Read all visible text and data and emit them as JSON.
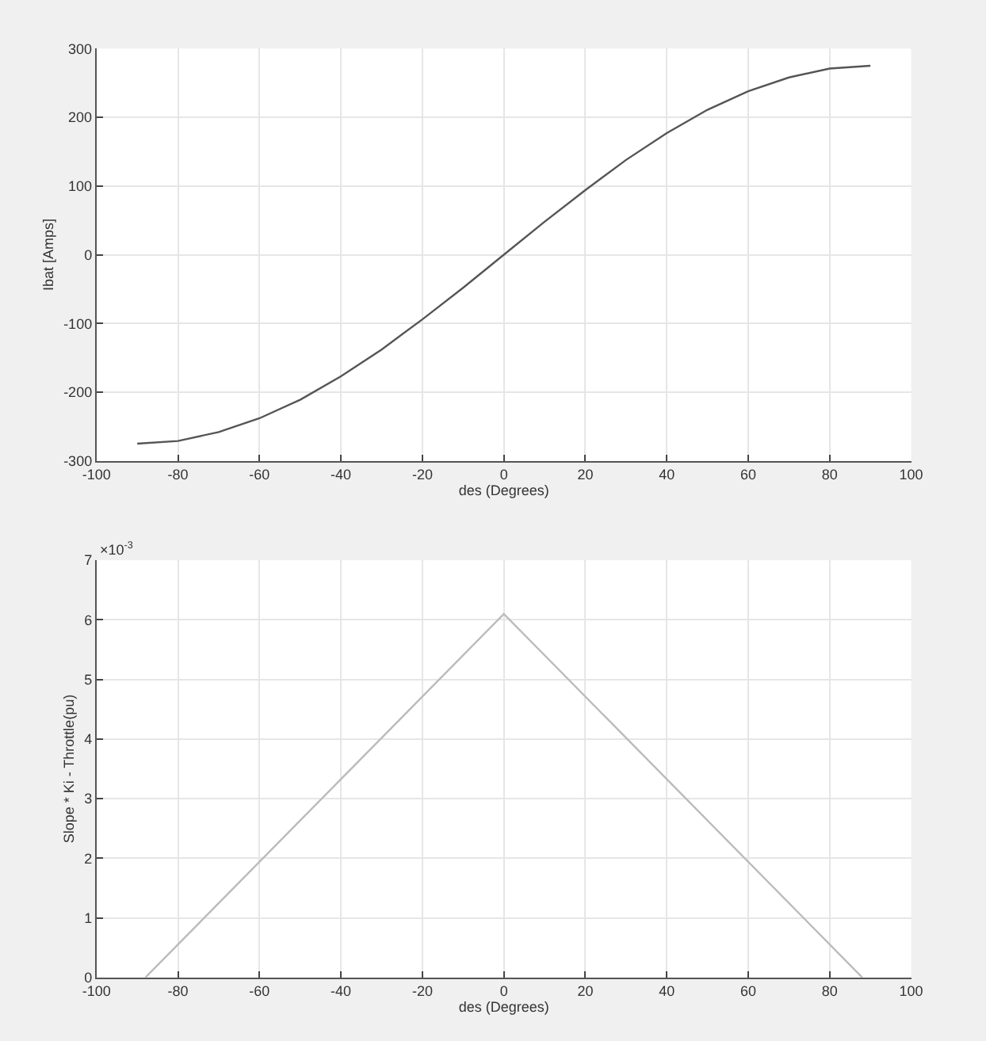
{
  "chart_data": [
    {
      "type": "line",
      "xlabel": "des (Degrees)",
      "ylabel": "Ibat [Amps]",
      "grid": true,
      "marker": "none",
      "line_style": "solid",
      "x": [
        -90,
        -80,
        -70,
        -60,
        -50,
        -40,
        -30,
        -20,
        -10,
        0,
        10,
        20,
        30,
        40,
        50,
        60,
        70,
        80,
        90
      ],
      "series": [
        {
          "color": "#555555",
          "values": [
            -275,
            -271,
            -258,
            -238,
            -211,
            -177,
            -138,
            -94,
            -48,
            0,
            48,
            94,
            138,
            177,
            211,
            238,
            258,
            271,
            275
          ]
        }
      ],
      "xlim": [
        -100,
        100
      ],
      "xticks": [
        -100,
        -80,
        -60,
        -40,
        -20,
        0,
        20,
        40,
        60,
        80,
        100
      ],
      "ylim": [
        -300,
        300
      ],
      "yticks": [
        -300,
        -200,
        -100,
        0,
        100,
        200,
        300
      ]
    },
    {
      "type": "line",
      "xlabel": "des (Degrees)",
      "ylabel": "Slope * Ki - Throttle(pu)",
      "grid": true,
      "marker": "none",
      "line_style": "solid",
      "annotations": [
        "×10$^{-3}$"
      ],
      "x": [
        -88,
        0,
        88
      ],
      "series": [
        {
          "color": "#bbbbbb",
          "values": [
            0,
            6.1,
            0
          ]
        }
      ],
      "xlim": [
        -100,
        100
      ],
      "xticks": [
        -100,
        -80,
        -60,
        -40,
        -20,
        0,
        20,
        40,
        60,
        80,
        100
      ],
      "ylim": [
        0,
        7
      ],
      "yticks": [
        0,
        1,
        2,
        3,
        4,
        5,
        6,
        7
      ]
    }
  ]
}
